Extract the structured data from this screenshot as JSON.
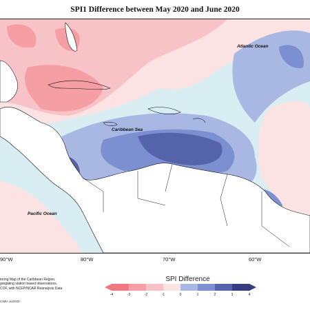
{
  "title": "SPI1 Difference between May 2020 and June 2020",
  "map_labels": {
    "atlantic": "Atlantic Ocean",
    "caribbean": "Caribbean Sea",
    "pacific": "Pacific Ocean"
  },
  "longitude_ticks": [
    "90°W",
    "80°W",
    "70°W",
    "60°W"
  ],
  "legend": {
    "title": "SPI Difference",
    "ticks": [
      "-4",
      "-3",
      "-2",
      "-1",
      "0",
      "1",
      "2",
      "3",
      "4"
    ],
    "colors": [
      "#f07880",
      "#f59ea4",
      "#f8c3c6",
      "#fbe3e4",
      "#d8eef2",
      "#a9b8e2",
      "#7c8fd0",
      "#5564aa",
      "#353e80"
    ]
  },
  "notes": [
    "toring Map of the Caribbean Region.",
    "gregating station based observations,",
    "COF, with NCEP/NCAR Reanalysis Data"
  ],
  "credit": "CIMH Jul2020",
  "colors": {
    "land": "#ffffff",
    "coast": "#111111"
  }
}
